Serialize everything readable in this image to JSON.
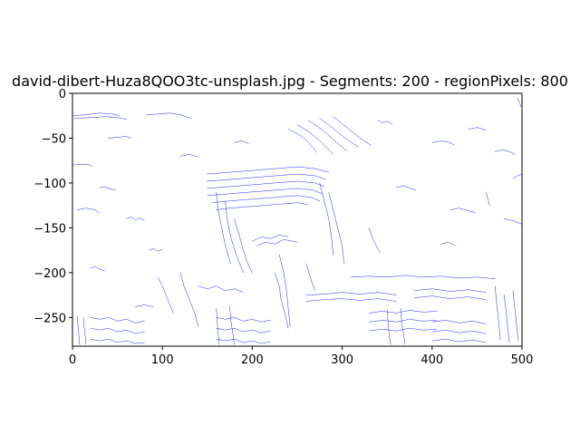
{
  "chart_data": {
    "type": "line",
    "title": "david-dibert-Huza8QOO3tc-unsplash.jpg - Segments: 200 - regionPixels: 800",
    "xlabel": "",
    "ylabel": "",
    "xlim": [
      0,
      500
    ],
    "ylim": [
      -282,
      0
    ],
    "xticks": [
      0,
      100,
      200,
      300,
      400,
      500
    ],
    "yticks": [
      0,
      -50,
      -100,
      -150,
      -200,
      -250
    ],
    "xtick_labels": [
      "0",
      "100",
      "200",
      "300",
      "400",
      "500"
    ],
    "ytick_labels": [
      "0",
      "−50",
      "−100",
      "−150",
      "−200",
      "−250"
    ],
    "grid": false,
    "line_color": "#0000ff",
    "series": [
      {
        "x": [
          0,
          15,
          30,
          45,
          52
        ],
        "y": [
          -25,
          -24,
          -22,
          -23,
          -25
        ]
      },
      {
        "x": [
          2,
          20,
          38,
          50,
          60
        ],
        "y": [
          -28,
          -27,
          -26,
          -27,
          -29
        ]
      },
      {
        "x": [
          82,
          95,
          108,
          120,
          132
        ],
        "y": [
          -24,
          -23,
          -22,
          -24,
          -28
        ]
      },
      {
        "x": [
          40,
          50,
          60,
          65
        ],
        "y": [
          -50,
          -49,
          -48,
          -50
        ]
      },
      {
        "x": [
          0,
          10,
          20,
          22
        ],
        "y": [
          -80,
          -79,
          -80,
          -82
        ]
      },
      {
        "x": [
          30,
          35,
          40,
          48
        ],
        "y": [
          -105,
          -104,
          -106,
          -108
        ]
      },
      {
        "x": [
          5,
          15,
          25,
          30
        ],
        "y": [
          -130,
          -128,
          -130,
          -134
        ]
      },
      {
        "x": [
          150,
          175,
          200,
          225,
          250,
          270,
          285
        ],
        "y": [
          -90,
          -88,
          -86,
          -84,
          -82,
          -84,
          -88
        ]
      },
      {
        "x": [
          150,
          175,
          200,
          225,
          250,
          270,
          282
        ],
        "y": [
          -98,
          -96,
          -94,
          -92,
          -90,
          -92,
          -96
        ]
      },
      {
        "x": [
          150,
          175,
          200,
          225,
          250,
          270,
          280
        ],
        "y": [
          -106,
          -104,
          -102,
          -100,
          -98,
          -100,
          -104
        ]
      },
      {
        "x": [
          150,
          175,
          200,
          225,
          250,
          268,
          278
        ],
        "y": [
          -114,
          -112,
          -110,
          -108,
          -106,
          -108,
          -112
        ]
      },
      {
        "x": [
          156,
          175,
          200,
          225,
          250,
          265,
          275
        ],
        "y": [
          -122,
          -120,
          -118,
          -116,
          -114,
          -116,
          -120
        ]
      },
      {
        "x": [
          160,
          175,
          200,
          225,
          250,
          262
        ],
        "y": [
          -130,
          -128,
          -126,
          -124,
          -122,
          -124
        ]
      },
      {
        "x": [
          160,
          162,
          166,
          170,
          176
        ],
        "y": [
          -110,
          -130,
          -150,
          -170,
          -190
        ]
      },
      {
        "x": [
          170,
          172,
          176,
          182,
          190
        ],
        "y": [
          -120,
          -140,
          -160,
          -180,
          -200
        ]
      },
      {
        "x": [
          180,
          186,
          190,
          195,
          200
        ],
        "y": [
          -140,
          -160,
          -175,
          -190,
          -200
        ]
      },
      {
        "x": [
          200,
          210,
          220,
          230,
          240
        ],
        "y": [
          -165,
          -160,
          -162,
          -158,
          -160
        ]
      },
      {
        "x": [
          205,
          215,
          225,
          235,
          250
        ],
        "y": [
          -170,
          -166,
          -168,
          -163,
          -166
        ]
      },
      {
        "x": [
          240,
          250,
          258,
          265,
          272
        ],
        "y": [
          -40,
          -45,
          -50,
          -58,
          -66
        ]
      },
      {
        "x": [
          250,
          262,
          272,
          280,
          290
        ],
        "y": [
          -35,
          -42,
          -50,
          -58,
          -68
        ]
      },
      {
        "x": [
          262,
          274,
          284,
          294,
          305
        ],
        "y": [
          -30,
          -38,
          -46,
          -55,
          -64
        ]
      },
      {
        "x": [
          275,
          286,
          296,
          306,
          318
        ],
        "y": [
          -28,
          -36,
          -44,
          -52,
          -60
        ]
      },
      {
        "x": [
          290,
          300,
          310,
          320,
          332
        ],
        "y": [
          -26,
          -34,
          -42,
          -50,
          -58
        ]
      },
      {
        "x": [
          275,
          280,
          285,
          288,
          290
        ],
        "y": [
          -100,
          -120,
          -140,
          -160,
          -180
        ]
      },
      {
        "x": [
          285,
          290,
          295,
          300,
          302
        ],
        "y": [
          -110,
          -130,
          -150,
          -170,
          -190
        ]
      },
      {
        "x": [
          230,
          235,
          238,
          240,
          242
        ],
        "y": [
          -180,
          -200,
          -220,
          -240,
          -260
        ]
      },
      {
        "x": [
          225,
          230,
          232,
          236,
          240
        ],
        "y": [
          -200,
          -215,
          -230,
          -245,
          -262
        ]
      },
      {
        "x": [
          95,
          100,
          104,
          108,
          112
        ],
        "y": [
          -205,
          -215,
          -225,
          -235,
          -245
        ]
      },
      {
        "x": [
          120,
          124,
          130,
          136,
          140
        ],
        "y": [
          -200,
          -215,
          -230,
          -245,
          -260
        ]
      },
      {
        "x": [
          140,
          150,
          160,
          170,
          180,
          190
        ],
        "y": [
          -215,
          -218,
          -215,
          -220,
          -218,
          -222
        ]
      },
      {
        "x": [
          20,
          30,
          40,
          50,
          60,
          70,
          80
        ],
        "y": [
          -250,
          -252,
          -250,
          -254,
          -252,
          -256,
          -254
        ]
      },
      {
        "x": [
          20,
          30,
          40,
          50,
          60,
          70,
          80
        ],
        "y": [
          -262,
          -264,
          -262,
          -266,
          -264,
          -268,
          -266
        ]
      },
      {
        "x": [
          20,
          30,
          40,
          50,
          60,
          70,
          80
        ],
        "y": [
          -274,
          -276,
          -274,
          -278,
          -276,
          -279,
          -278
        ]
      },
      {
        "x": [
          5,
          6,
          7,
          8
        ],
        "y": [
          -248,
          -258,
          -268,
          -280
        ]
      },
      {
        "x": [
          12,
          13,
          14,
          15
        ],
        "y": [
          -250,
          -260,
          -270,
          -280
        ]
      },
      {
        "x": [
          160,
          170,
          180,
          190,
          200,
          210,
          220
        ],
        "y": [
          -250,
          -252,
          -250,
          -254,
          -252,
          -255,
          -253
        ]
      },
      {
        "x": [
          160,
          170,
          180,
          190,
          200,
          210,
          220
        ],
        "y": [
          -262,
          -264,
          -262,
          -266,
          -264,
          -267,
          -265
        ]
      },
      {
        "x": [
          160,
          170,
          180,
          190,
          200,
          210,
          220
        ],
        "y": [
          -274,
          -276,
          -274,
          -278,
          -276,
          -279,
          -277
        ]
      },
      {
        "x": [
          160,
          161,
          162,
          163
        ],
        "y": [
          -240,
          -255,
          -268,
          -280
        ]
      },
      {
        "x": [
          175,
          176,
          178,
          180
        ],
        "y": [
          -238,
          -252,
          -266,
          -280
        ]
      },
      {
        "x": [
          260,
          280,
          300,
          320,
          340,
          360
        ],
        "y": [
          -225,
          -224,
          -222,
          -224,
          -222,
          -225
        ]
      },
      {
        "x": [
          260,
          280,
          300,
          320,
          340,
          360
        ],
        "y": [
          -232,
          -230,
          -229,
          -231,
          -229,
          -232
        ]
      },
      {
        "x": [
          330,
          345,
          360,
          375,
          390,
          405
        ],
        "y": [
          -245,
          -243,
          -245,
          -242,
          -244,
          -243
        ]
      },
      {
        "x": [
          330,
          345,
          360,
          375,
          390,
          405
        ],
        "y": [
          -255,
          -253,
          -255,
          -252,
          -254,
          -253
        ]
      },
      {
        "x": [
          330,
          345,
          360,
          375,
          390,
          405
        ],
        "y": [
          -265,
          -263,
          -265,
          -262,
          -264,
          -263
        ]
      },
      {
        "x": [
          350,
          351,
          352,
          354
        ],
        "y": [
          -242,
          -255,
          -268,
          -280
        ]
      },
      {
        "x": [
          365,
          366,
          368,
          370
        ],
        "y": [
          -240,
          -254,
          -267,
          -280
        ]
      },
      {
        "x": [
          380,
          400,
          420,
          440,
          460
        ],
        "y": [
          -220,
          -218,
          -221,
          -219,
          -222
        ]
      },
      {
        "x": [
          380,
          400,
          420,
          440,
          460
        ],
        "y": [
          -228,
          -226,
          -229,
          -227,
          -230
        ]
      },
      {
        "x": [
          400,
          415,
          430,
          445,
          460
        ],
        "y": [
          -255,
          -253,
          -256,
          -254,
          -257
        ]
      },
      {
        "x": [
          400,
          415,
          430,
          445,
          460
        ],
        "y": [
          -266,
          -264,
          -267,
          -265,
          -268
        ]
      },
      {
        "x": [
          400,
          415,
          430,
          445,
          460
        ],
        "y": [
          -276,
          -274,
          -277,
          -275,
          -278
        ]
      },
      {
        "x": [
          470,
          472,
          474,
          476
        ],
        "y": [
          -215,
          -235,
          -255,
          -275
        ]
      },
      {
        "x": [
          480,
          482,
          484,
          486
        ],
        "y": [
          -225,
          -240,
          -260,
          -278
        ]
      },
      {
        "x": [
          490,
          492,
          494,
          496
        ],
        "y": [
          -220,
          -240,
          -258,
          -276
        ]
      },
      {
        "x": [
          310,
          330,
          350,
          370,
          390,
          410,
          430,
          450,
          470
        ],
        "y": [
          -205,
          -204,
          -205,
          -203,
          -205,
          -204,
          -206,
          -205,
          -207
        ]
      },
      {
        "x": [
          340,
          345,
          350,
          356
        ],
        "y": [
          -30,
          -33,
          -31,
          -35
        ]
      },
      {
        "x": [
          400,
          410,
          420,
          425
        ],
        "y": [
          -55,
          -53,
          -55,
          -58
        ]
      },
      {
        "x": [
          470,
          478,
          486,
          492
        ],
        "y": [
          -65,
          -63,
          -65,
          -68
        ]
      },
      {
        "x": [
          360,
          368,
          376,
          382
        ],
        "y": [
          -105,
          -103,
          -106,
          -108
        ]
      },
      {
        "x": [
          420,
          430,
          440,
          448
        ],
        "y": [
          -130,
          -128,
          -131,
          -133
        ]
      },
      {
        "x": [
          480,
          490,
          500
        ],
        "y": [
          -140,
          -142,
          -146
        ]
      },
      {
        "x": [
          410,
          418,
          426
        ],
        "y": [
          -168,
          -166,
          -170
        ]
      },
      {
        "x": [
          490,
          495,
          500
        ],
        "y": [
          -95,
          -92,
          -90
        ]
      },
      {
        "x": [
          460,
          462,
          464
        ],
        "y": [
          -110,
          -118,
          -125
        ]
      },
      {
        "x": [
          60,
          65,
          70,
          75,
          80
        ],
        "y": [
          -140,
          -138,
          -141,
          -139,
          -142
        ]
      },
      {
        "x": [
          85,
          90,
          95,
          100
        ],
        "y": [
          -175,
          -173,
          -176,
          -174
        ]
      },
      {
        "x": [
          20,
          25,
          30,
          36
        ],
        "y": [
          -195,
          -193,
          -196,
          -198
        ]
      },
      {
        "x": [
          70,
          80,
          90
        ],
        "y": [
          -238,
          -236,
          -238
        ]
      },
      {
        "x": [
          330,
          333,
          338,
          342
        ],
        "y": [
          -150,
          -160,
          -170,
          -178
        ]
      },
      {
        "x": [
          260,
          263,
          266,
          270
        ],
        "y": [
          -190,
          -200,
          -210,
          -220
        ]
      },
      {
        "x": [
          120,
          130,
          140
        ],
        "y": [
          -70,
          -68,
          -71
        ]
      },
      {
        "x": [
          180,
          188,
          196
        ],
        "y": [
          -55,
          -53,
          -56
        ]
      },
      {
        "x": [
          440,
          450,
          460
        ],
        "y": [
          -40,
          -38,
          -41
        ]
      },
      {
        "x": [
          495,
          497,
          499
        ],
        "y": [
          -5,
          -10,
          -15
        ]
      }
    ]
  }
}
